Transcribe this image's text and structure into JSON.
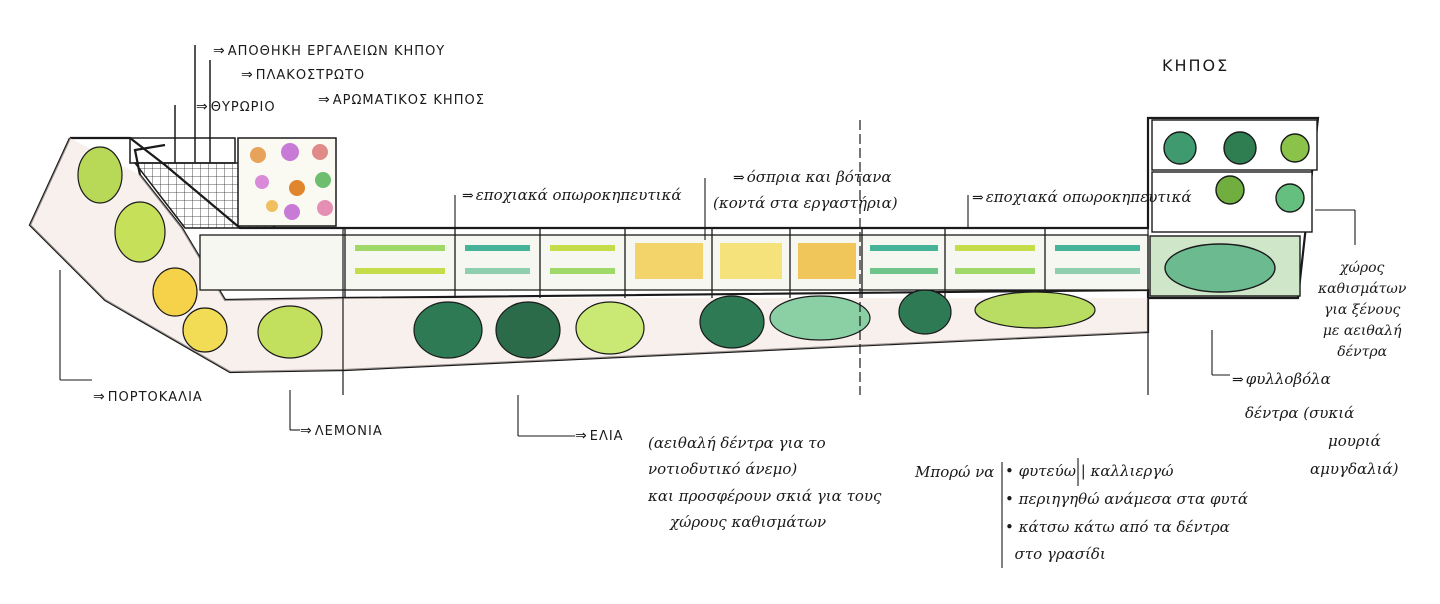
{
  "title": "ΚΗΠΟΣ",
  "labels": {
    "tool_shed": "ΑΠΟΘΗΚΗ ΕΡΓΑΛΕΙΩΝ ΚΗΠΟΥ",
    "paving": "ΠΛΑΚΟΣΤΡΩΤΟ",
    "gate": "ΘΥΡΩΡΙΟ",
    "herb_garden": "ΑΡΩΜΑΤΙΚΟΣ ΚΗΠΟΣ",
    "seasonal_veg_1": "εποχιακά οπωροκηπευτικά",
    "legumes": "όσπρια και βότανα",
    "legumes_note": "(κοντά στα εργαστήρια)",
    "seasonal_veg_2": "εποχιακά οπωροκηπευτικά",
    "oranges": "ΠΟΡΤΟΚΑΛΙΑ",
    "lemons": "ΛΕΜΟΝΙΑ",
    "olives": "ΕΛΙΑ",
    "deciduous": "φυλλοβόλα",
    "deciduous_cont": "δέντρα (συκιά",
    "deciduous_cont2": "μουριά",
    "deciduous_cont3": "αμυγδαλιά)"
  },
  "seating_note": [
    "χώρος",
    "καθισμάτων",
    "για ξένους",
    "με αειθαλή",
    "δέντρα"
  ],
  "evergreen_note": [
    "(αειθαλή δέντρα για το",
    "νοτιοδυτικό άνεμο)",
    "και προσφέρουν σκιά για τους",
    "χώρους καθισμάτων"
  ],
  "activities": {
    "intro": "Μπορώ να",
    "items": [
      "• φυτεύω | καλλιεργώ",
      "• περιηγηθώ ανάμεσα στα φυτά",
      "• κάτσω κάτω από τα δέντρα",
      "  στο γρασίδι"
    ]
  }
}
